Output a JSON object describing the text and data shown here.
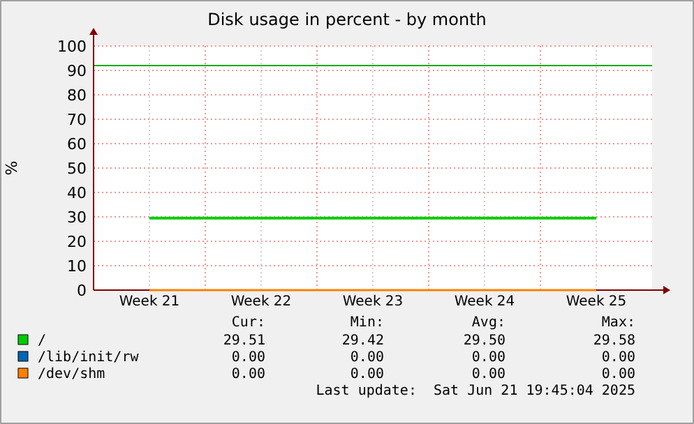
{
  "chart_data": {
    "type": "line",
    "title": "Disk usage in percent - by month",
    "ylabel": "%",
    "categories": [
      "Week 21",
      "Week 22",
      "Week 23",
      "Week 24",
      "Week 25"
    ],
    "ylim": [
      0,
      100
    ],
    "yticks": [
      0,
      10,
      20,
      30,
      40,
      50,
      60,
      70,
      80,
      90,
      100
    ],
    "grid": true,
    "legend": "bottom",
    "marker": "none",
    "line_style": "solid",
    "ref_lines": [
      {
        "axis": "y",
        "value": 92,
        "color": "#00aa00"
      }
    ],
    "series": [
      {
        "name": "/",
        "color": "#00cc00",
        "values": [
          29.5,
          29.5,
          29.5,
          29.5,
          29.5
        ]
      },
      {
        "name": "/lib/init/rw",
        "color": "#0066b3",
        "values": [
          null,
          null,
          null,
          null,
          null
        ]
      },
      {
        "name": "/dev/shm",
        "color": "#ff8000",
        "values": [
          0,
          0,
          0,
          0,
          0
        ]
      }
    ],
    "annotations": [
      "Cur:",
      "Min:",
      "Avg:",
      "Max:",
      "29.51",
      "29.42",
      "29.50",
      "29.58",
      "0.00",
      "0.00",
      "0.00",
      "0.00",
      "0.00",
      "0.00",
      "0.00",
      "0.00",
      "Last update:  Sat Jun 21 19:45:04 2025"
    ]
  }
}
